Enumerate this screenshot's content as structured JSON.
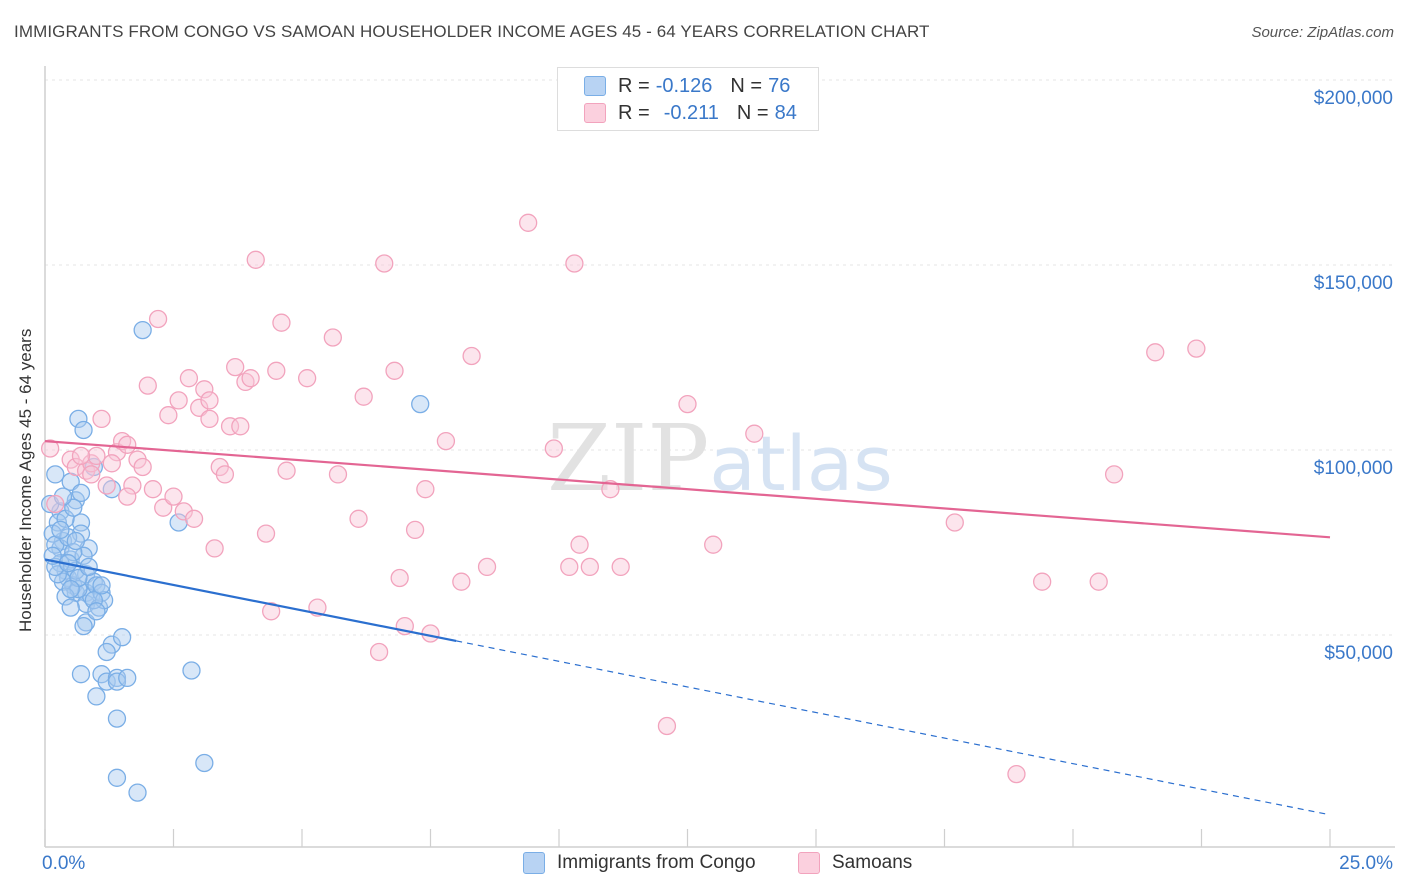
{
  "chart_data": {
    "type": "scatter",
    "title": "IMMIGRANTS FROM CONGO VS SAMOAN HOUSEHOLDER INCOME AGES 45 - 64 YEARS CORRELATION CHART",
    "source": "Source: ZipAtlas.com",
    "xlabel": "",
    "ylabel": "Householder Income Ages 45 - 64 years",
    "xlim": [
      0,
      25
    ],
    "ylim": [
      0,
      210000
    ],
    "x_tick_labels": {
      "min": "0.0%",
      "max": "25.0%"
    },
    "y_ticks": [
      {
        "value": 50000,
        "label": "$50,000"
      },
      {
        "value": 100000,
        "label": "$100,000"
      },
      {
        "value": 150000,
        "label": "$150,000"
      },
      {
        "value": 200000,
        "label": "$200,000"
      }
    ],
    "watermark": "ZIPatlas",
    "legend": [
      {
        "r_label": "R =",
        "r_value": "-0.126",
        "n_label": "N =",
        "n_value": "76"
      },
      {
        "r_label": "R =",
        "r_value": "-0.211",
        "n_label": "N =",
        "n_value": "84"
      }
    ],
    "series": [
      {
        "name": "Immigrants from Congo",
        "color": "#7aaee6",
        "fill": "#a9c9f0",
        "line_color": "#2b6fcf",
        "trend": {
          "x0": 0.0,
          "y0": 75000,
          "x1": 8.0,
          "y1": 53000,
          "dash_x1": 25.0,
          "dash_y1": 6000
        },
        "points": [
          [
            0.2,
            98000
          ],
          [
            0.3,
            88000
          ],
          [
            0.25,
            85000
          ],
          [
            0.35,
            80000
          ],
          [
            0.3,
            78000
          ],
          [
            0.4,
            72000
          ],
          [
            0.45,
            70000
          ],
          [
            0.5,
            75000
          ],
          [
            0.55,
            68000
          ],
          [
            0.6,
            66000
          ],
          [
            0.5,
            96000
          ],
          [
            0.6,
            91000
          ],
          [
            0.65,
            113000
          ],
          [
            0.75,
            110000
          ],
          [
            0.7,
            93000
          ],
          [
            0.7,
            85000
          ],
          [
            0.7,
            82000
          ],
          [
            0.85,
            78000
          ],
          [
            0.75,
            76000
          ],
          [
            0.8,
            71000
          ],
          [
            0.8,
            66000
          ],
          [
            0.8,
            63000
          ],
          [
            0.8,
            58000
          ],
          [
            0.9,
            65000
          ],
          [
            0.95,
            69000
          ],
          [
            1.0,
            68000
          ],
          [
            1.05,
            62000
          ],
          [
            1.1,
            66000
          ],
          [
            1.15,
            64000
          ],
          [
            0.95,
            100000
          ],
          [
            0.7,
            44000
          ],
          [
            1.0,
            38000
          ],
          [
            1.1,
            44000
          ],
          [
            1.2,
            42000
          ],
          [
            1.3,
            52000
          ],
          [
            1.4,
            43000
          ],
          [
            1.4,
            42000
          ],
          [
            1.4,
            32000
          ],
          [
            1.5,
            54000
          ],
          [
            1.6,
            43000
          ],
          [
            1.4,
            16000
          ],
          [
            1.8,
            12000
          ],
          [
            1.9,
            137000
          ],
          [
            1.3,
            94000
          ],
          [
            2.6,
            85000
          ],
          [
            2.85,
            45000
          ],
          [
            3.1,
            20000
          ],
          [
            7.3,
            117000
          ],
          [
            0.1,
            90000
          ],
          [
            0.15,
            82000
          ],
          [
            0.2,
            79000
          ],
          [
            0.3,
            74000
          ],
          [
            0.4,
            86000
          ],
          [
            0.45,
            81000
          ],
          [
            0.55,
            77000
          ],
          [
            0.6,
            72000
          ],
          [
            0.65,
            67000
          ],
          [
            0.35,
            69000
          ],
          [
            0.25,
            71000
          ],
          [
            0.2,
            73000
          ],
          [
            0.15,
            76000
          ],
          [
            0.3,
            83000
          ],
          [
            0.4,
            65000
          ],
          [
            0.5,
            62000
          ],
          [
            0.55,
            89000
          ],
          [
            0.45,
            74000
          ],
          [
            0.6,
            80000
          ],
          [
            0.65,
            70000
          ],
          [
            0.5,
            67000
          ],
          [
            0.85,
            73000
          ],
          [
            0.95,
            64000
          ],
          [
            1.0,
            61000
          ],
          [
            1.2,
            50000
          ],
          [
            0.75,
            57000
          ],
          [
            1.1,
            68000
          ],
          [
            0.35,
            92000
          ]
        ]
      },
      {
        "name": "Samoans",
        "color": "#f2a3bd",
        "fill": "#f8c5d6",
        "line_color": "#e36593",
        "trend": {
          "x0": 0.0,
          "y0": 107000,
          "x1": 25.0,
          "y1": 81000
        },
        "points": [
          [
            0.1,
            105000
          ],
          [
            0.2,
            90000
          ],
          [
            0.5,
            102000
          ],
          [
            0.6,
            100000
          ],
          [
            0.8,
            99000
          ],
          [
            0.9,
            101000
          ],
          [
            1.0,
            103000
          ],
          [
            1.1,
            113000
          ],
          [
            1.2,
            95000
          ],
          [
            1.4,
            104000
          ],
          [
            1.5,
            107000
          ],
          [
            1.6,
            106000
          ],
          [
            1.7,
            95000
          ],
          [
            1.8,
            102000
          ],
          [
            1.9,
            100000
          ],
          [
            2.0,
            122000
          ],
          [
            2.1,
            94000
          ],
          [
            2.2,
            140000
          ],
          [
            2.3,
            89000
          ],
          [
            2.4,
            114000
          ],
          [
            2.5,
            92000
          ],
          [
            2.6,
            118000
          ],
          [
            2.7,
            88000
          ],
          [
            2.8,
            124000
          ],
          [
            2.9,
            86000
          ],
          [
            3.0,
            116000
          ],
          [
            3.1,
            121000
          ],
          [
            3.2,
            113000
          ],
          [
            3.2,
            118000
          ],
          [
            3.3,
            78000
          ],
          [
            3.4,
            100000
          ],
          [
            3.5,
            98000
          ],
          [
            3.6,
            111000
          ],
          [
            3.7,
            127000
          ],
          [
            3.8,
            111000
          ],
          [
            3.9,
            123000
          ],
          [
            4.0,
            124000
          ],
          [
            4.1,
            156000
          ],
          [
            4.3,
            82000
          ],
          [
            4.4,
            61000
          ],
          [
            4.5,
            126000
          ],
          [
            4.6,
            139000
          ],
          [
            4.7,
            99000
          ],
          [
            5.1,
            124000
          ],
          [
            5.3,
            62000
          ],
          [
            5.6,
            135000
          ],
          [
            5.7,
            98000
          ],
          [
            6.1,
            86000
          ],
          [
            6.2,
            119000
          ],
          [
            6.5,
            50000
          ],
          [
            6.6,
            155000
          ],
          [
            6.8,
            126000
          ],
          [
            6.9,
            70000
          ],
          [
            7.0,
            57000
          ],
          [
            7.2,
            83000
          ],
          [
            7.4,
            94000
          ],
          [
            7.5,
            55000
          ],
          [
            7.8,
            107000
          ],
          [
            8.1,
            69000
          ],
          [
            8.3,
            130000
          ],
          [
            8.6,
            73000
          ],
          [
            9.4,
            166000
          ],
          [
            9.9,
            105000
          ],
          [
            10.2,
            73000
          ],
          [
            10.3,
            155000
          ],
          [
            10.4,
            79000
          ],
          [
            10.6,
            73000
          ],
          [
            11.0,
            94000
          ],
          [
            11.2,
            73000
          ],
          [
            12.1,
            30000
          ],
          [
            12.5,
            117000
          ],
          [
            13.0,
            79000
          ],
          [
            13.8,
            109000
          ],
          [
            17.7,
            85000
          ],
          [
            18.9,
            17000
          ],
          [
            19.4,
            69000
          ],
          [
            20.5,
            69000
          ],
          [
            20.8,
            98000
          ],
          [
            21.6,
            131000
          ],
          [
            22.4,
            132000
          ],
          [
            1.3,
            101000
          ],
          [
            0.7,
            103000
          ],
          [
            0.9,
            98000
          ],
          [
            1.6,
            92000
          ]
        ]
      }
    ]
  }
}
